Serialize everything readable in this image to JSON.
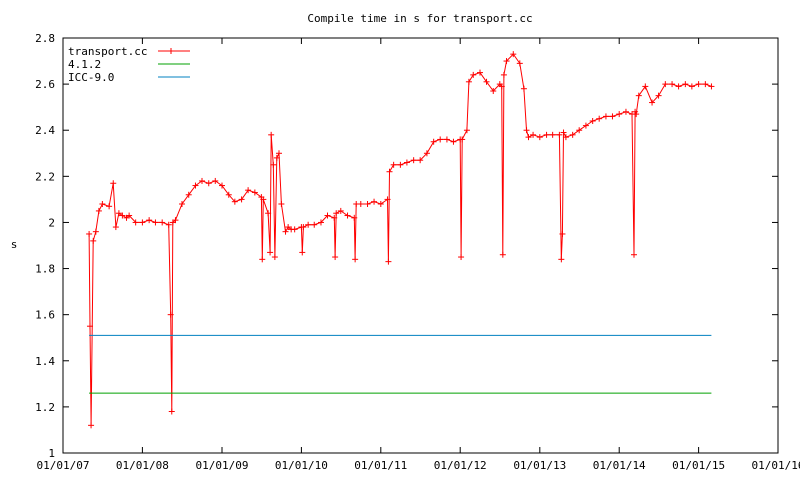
{
  "chart_data": {
    "type": "line",
    "title": "Compile time in s for transport.cc",
    "xlabel": "",
    "ylabel": "s",
    "ylim": [
      1,
      2.8
    ],
    "yticks": [
      "1",
      "1.2",
      "1.4",
      "1.6",
      "1.8",
      "2",
      "2.2",
      "2.4",
      "2.6",
      "2.8"
    ],
    "xlim": [
      "2007-01-01",
      "2016-01-01"
    ],
    "xticks": [
      "01/01/07",
      "01/01/08",
      "01/01/09",
      "01/01/10",
      "01/01/11",
      "01/01/12",
      "01/01/13",
      "01/01/14",
      "01/01/15",
      "01/01/16"
    ],
    "xtick_dates": [
      "2007-01-01",
      "2008-01-01",
      "2009-01-01",
      "2010-01-01",
      "2011-01-01",
      "2012-01-01",
      "2013-01-01",
      "2014-01-01",
      "2015-01-01",
      "2016-01-01"
    ],
    "legend_position": "top-left",
    "grid": false,
    "series": [
      {
        "name": "transport.cc",
        "color": "#ff0000",
        "marker": "plus",
        "x": [
          "2007-05-01",
          "2007-05-05",
          "2007-05-10",
          "2007-05-20",
          "2007-06-01",
          "2007-06-15",
          "2007-07-01",
          "2007-08-01",
          "2007-08-20",
          "2007-09-01",
          "2007-09-15",
          "2007-10-01",
          "2007-10-20",
          "2007-11-01",
          "2007-12-01",
          "2008-01-01",
          "2008-02-01",
          "2008-03-01",
          "2008-04-01",
          "2008-05-01",
          "2008-05-10",
          "2008-05-15",
          "2008-05-20",
          "2008-06-01",
          "2008-07-01",
          "2008-08-01",
          "2008-09-01",
          "2008-10-01",
          "2008-11-01",
          "2008-12-01",
          "2009-01-01",
          "2009-02-01",
          "2009-03-01",
          "2009-04-01",
          "2009-05-01",
          "2009-06-01",
          "2009-07-01",
          "2009-07-05",
          "2009-07-10",
          "2009-08-01",
          "2009-08-10",
          "2009-08-15",
          "2009-08-25",
          "2009-09-01",
          "2009-09-10",
          "2009-09-20",
          "2009-10-01",
          "2009-10-20",
          "2009-11-01",
          "2009-11-15",
          "2009-12-01",
          "2010-01-01",
          "2010-01-05",
          "2010-01-10",
          "2010-02-01",
          "2010-03-01",
          "2010-04-01",
          "2010-05-01",
          "2010-06-01",
          "2010-06-05",
          "2010-06-10",
          "2010-07-01",
          "2010-08-01",
          "2010-09-01",
          "2010-09-05",
          "2010-09-10",
          "2010-10-01",
          "2010-11-01",
          "2010-12-01",
          "2011-01-01",
          "2011-02-01",
          "2011-02-05",
          "2011-02-10",
          "2011-03-01",
          "2011-04-01",
          "2011-05-01",
          "2011-06-01",
          "2011-07-01",
          "2011-08-01",
          "2011-09-01",
          "2011-10-01",
          "2011-11-01",
          "2011-12-01",
          "2012-01-01",
          "2012-01-05",
          "2012-01-10",
          "2012-02-01",
          "2012-02-10",
          "2012-03-01",
          "2012-04-01",
          "2012-05-01",
          "2012-06-01",
          "2012-07-01",
          "2012-07-10",
          "2012-07-15",
          "2012-07-20",
          "2012-08-01",
          "2012-09-01",
          "2012-10-01",
          "2012-10-20",
          "2012-11-01",
          "2012-11-10",
          "2012-12-01",
          "2013-01-01",
          "2013-02-01",
          "2013-03-01",
          "2013-04-01",
          "2013-04-10",
          "2013-04-15",
          "2013-04-20",
          "2013-05-01",
          "2013-06-01",
          "2013-07-01",
          "2013-08-01",
          "2013-09-01",
          "2013-10-01",
          "2013-11-01",
          "2013-12-01",
          "2014-01-01",
          "2014-02-01",
          "2014-03-01",
          "2014-03-10",
          "2014-03-15",
          "2014-03-20",
          "2014-04-01",
          "2014-05-01",
          "2014-06-01",
          "2014-07-01",
          "2014-08-01",
          "2014-09-01",
          "2014-10-01",
          "2014-11-01",
          "2014-12-01",
          "2015-01-01",
          "2015-02-01",
          "2015-03-01"
        ],
        "y": [
          1.95,
          1.55,
          1.12,
          1.92,
          1.96,
          2.05,
          2.08,
          2.07,
          2.17,
          1.98,
          2.04,
          2.03,
          2.02,
          2.03,
          2.0,
          2.0,
          2.01,
          2.0,
          2.0,
          1.99,
          1.6,
          1.18,
          2.0,
          2.01,
          2.08,
          2.12,
          2.16,
          2.18,
          2.17,
          2.18,
          2.16,
          2.12,
          2.09,
          2.1,
          2.14,
          2.13,
          2.11,
          1.84,
          2.1,
          2.04,
          1.87,
          2.38,
          2.25,
          1.85,
          2.28,
          2.3,
          2.08,
          1.96,
          1.98,
          1.97,
          1.97,
          1.98,
          1.87,
          1.98,
          1.99,
          1.99,
          2.0,
          2.03,
          2.02,
          1.85,
          2.04,
          2.05,
          2.03,
          2.02,
          1.84,
          2.08,
          2.08,
          2.08,
          2.09,
          2.08,
          2.1,
          1.83,
          2.22,
          2.25,
          2.25,
          2.26,
          2.27,
          2.27,
          2.3,
          2.35,
          2.36,
          2.36,
          2.35,
          2.36,
          1.85,
          2.36,
          2.4,
          2.61,
          2.64,
          2.65,
          2.61,
          2.57,
          2.6,
          2.59,
          1.86,
          2.64,
          2.7,
          2.73,
          2.69,
          2.58,
          2.4,
          2.37,
          2.38,
          2.37,
          2.38,
          2.38,
          2.38,
          1.84,
          1.95,
          2.39,
          2.37,
          2.38,
          2.4,
          2.42,
          2.44,
          2.45,
          2.46,
          2.46,
          2.47,
          2.48,
          2.47,
          1.86,
          2.48,
          2.47,
          2.55,
          2.59,
          2.52,
          2.55,
          2.6,
          2.6,
          2.59,
          2.6,
          2.59,
          2.6,
          2.6,
          2.59
        ]
      },
      {
        "name": "4.1.2",
        "color": "#00a000",
        "x": [
          "2007-05-01",
          "2015-03-01"
        ],
        "y": [
          1.26,
          1.26
        ]
      },
      {
        "name": "ICC-9.0",
        "color": "#0080c0",
        "x": [
          "2007-05-01",
          "2015-03-01"
        ],
        "y": [
          1.51,
          1.51
        ]
      }
    ]
  }
}
